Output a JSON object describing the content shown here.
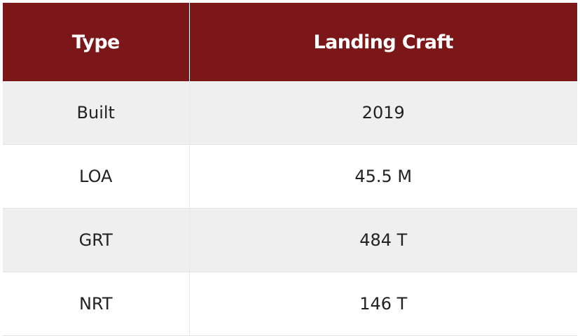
{
  "table": {
    "header": {
      "col1": "Type",
      "col2": "Landing Craft"
    },
    "rows": [
      {
        "label": "Built",
        "value": "2019"
      },
      {
        "label": "LOA",
        "value": "45.5 M"
      },
      {
        "label": "GRT",
        "value": "484 T"
      },
      {
        "label": "NRT",
        "value": "146 T"
      }
    ]
  },
  "colors": {
    "header_bg": "#7c1719",
    "header_text": "#ffffff",
    "row_alt_bg": "#efefef",
    "row_bg": "#ffffff",
    "body_text": "#222222"
  }
}
